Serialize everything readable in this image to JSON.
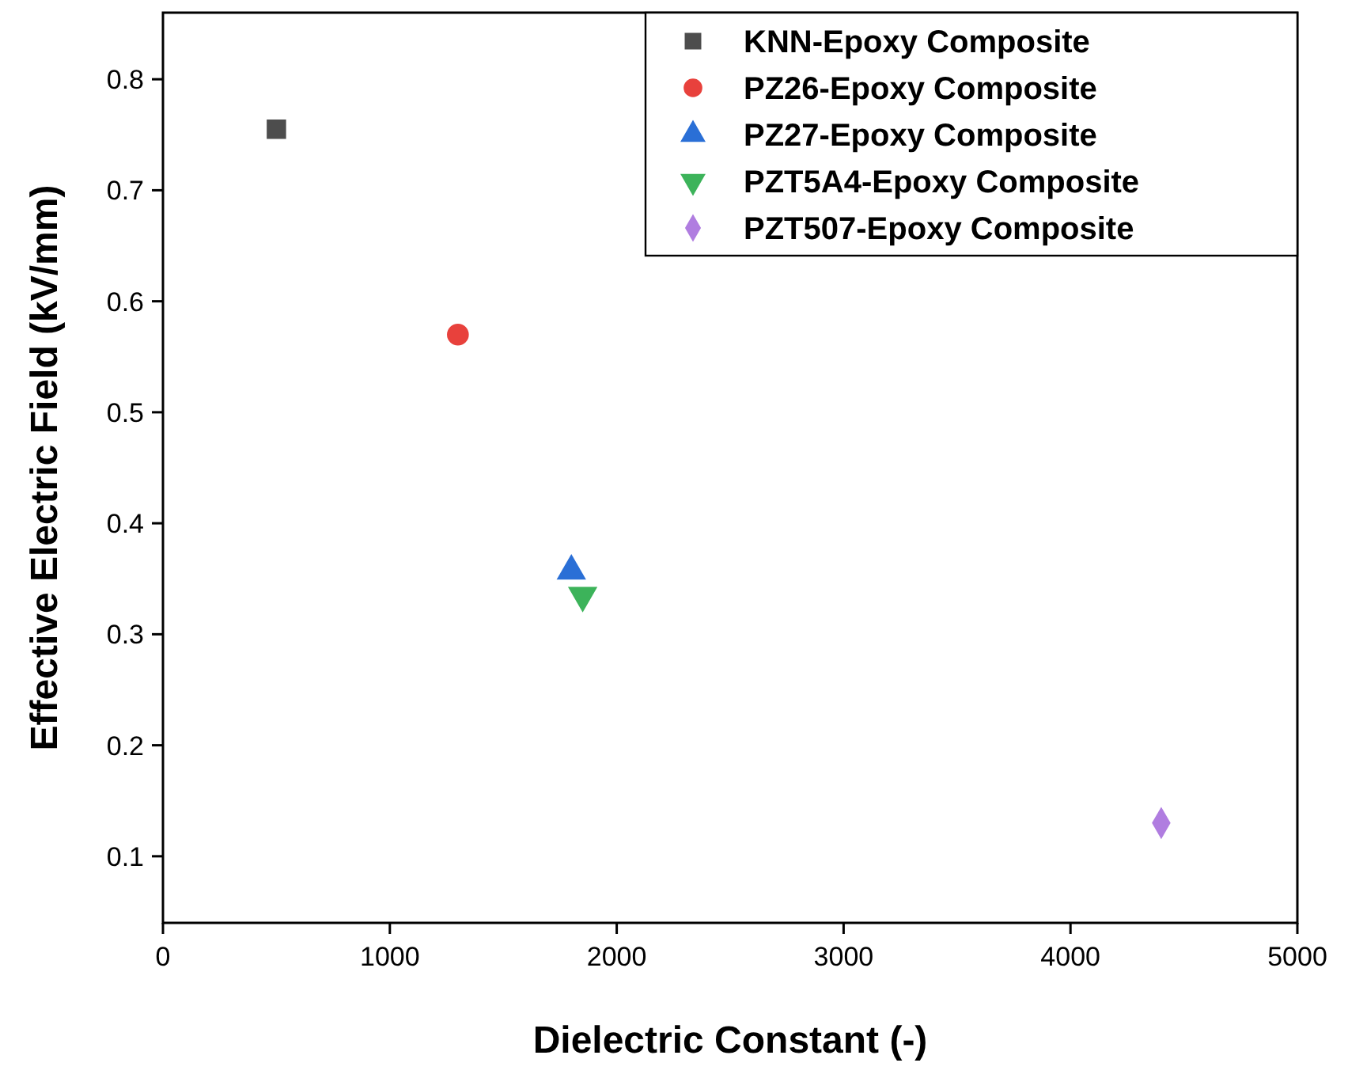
{
  "chart_data": {
    "type": "scatter",
    "xlabel": "Dielectric Constant (-)",
    "ylabel": "Effective Electric Field (kV/mm)",
    "xlim": [
      0,
      5000
    ],
    "xticks": [
      0,
      1000,
      2000,
      3000,
      4000,
      5000
    ],
    "ylim": [
      0.04,
      0.86
    ],
    "yticks": [
      0.1,
      0.2,
      0.3,
      0.4,
      0.5,
      0.6,
      0.7,
      0.8
    ],
    "grid": false,
    "legend": "top right",
    "series": [
      {
        "name": "KNN-Epoxy Composite",
        "color": "#4d4d4d",
        "marker": "square",
        "x": [
          500
        ],
        "values": [
          0.755
        ]
      },
      {
        "name": "PZ26-Epoxy Composite",
        "color": "#e8413c",
        "marker": "circle",
        "x": [
          1300
        ],
        "values": [
          0.57
        ]
      },
      {
        "name": "PZ27-Epoxy Composite",
        "color": "#2a6fd6",
        "marker": "triangle",
        "x": [
          1800
        ],
        "values": [
          0.357
        ]
      },
      {
        "name": "PZT5A4-Epoxy Composite",
        "color": "#3cb35a",
        "marker": "triangle-down",
        "x": [
          1850
        ],
        "values": [
          0.335
        ]
      },
      {
        "name": "PZT507-Epoxy Composite",
        "color": "#b07de0",
        "marker": "diamond",
        "x": [
          4400
        ],
        "values": [
          0.13
        ]
      }
    ]
  }
}
